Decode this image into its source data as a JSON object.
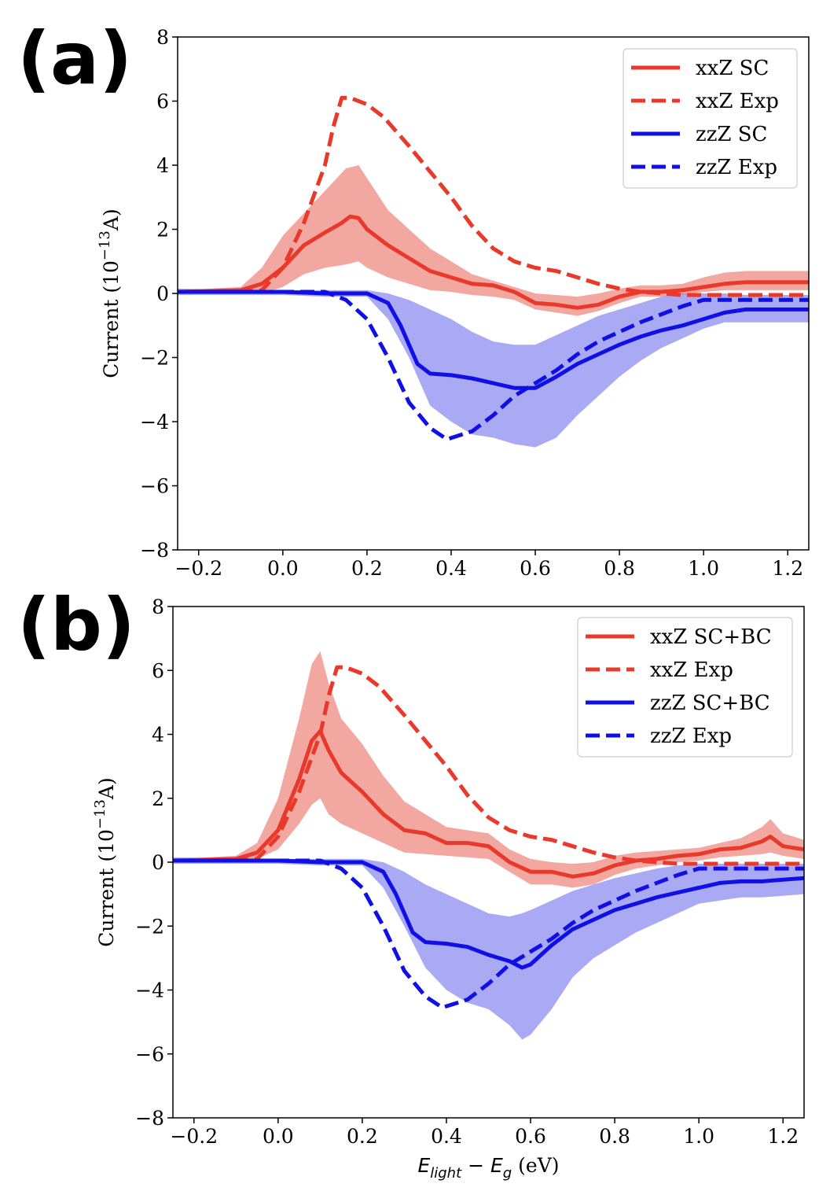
{
  "colors": {
    "red": "#e8392b",
    "blue": "#1010e6",
    "red_band": "#ee8a82",
    "blue_band": "#8e8ef0"
  },
  "chart_data": [
    {
      "type": "line",
      "panel_label": "(a)",
      "xlabel": "",
      "ylabel_parts": {
        "pre": "Current (10",
        "sup": "−13",
        "post": "A)"
      },
      "xlim": [
        -0.25,
        1.25
      ],
      "ylim": [
        -8,
        8
      ],
      "xticks": [
        "−0.2",
        "0.0",
        "0.2",
        "0.4",
        "0.6",
        "0.8",
        "1.0",
        "1.2"
      ],
      "xtick_values": [
        -0.2,
        0,
        0.2,
        0.4,
        0.6,
        0.8,
        1.0,
        1.2
      ],
      "yticks": [
        "−8",
        "−6",
        "−4",
        "−2",
        "0",
        "2",
        "4",
        "6",
        "8"
      ],
      "ytick_values": [
        -8,
        -6,
        -4,
        -2,
        0,
        2,
        4,
        6,
        8
      ],
      "grid": false,
      "legend_position": "top-right",
      "legend": [
        "xxZ SC",
        "xxZ Exp",
        "zzZ SC",
        "zzZ Exp"
      ],
      "series": [
        {
          "name": "xxZ SC",
          "color": "red",
          "style": "solid",
          "x": [
            -0.25,
            -0.1,
            -0.05,
            0.0,
            0.05,
            0.1,
            0.14,
            0.16,
            0.18,
            0.2,
            0.25,
            0.3,
            0.35,
            0.4,
            0.45,
            0.5,
            0.55,
            0.6,
            0.65,
            0.7,
            0.75,
            0.8,
            0.85,
            0.9,
            0.95,
            1.0,
            1.05,
            1.1,
            1.15,
            1.2,
            1.25
          ],
          "y": [
            0.05,
            0.1,
            0.3,
            0.8,
            1.5,
            1.9,
            2.2,
            2.4,
            2.35,
            2.0,
            1.5,
            1.1,
            0.7,
            0.5,
            0.3,
            0.25,
            0.05,
            -0.3,
            -0.35,
            -0.45,
            -0.35,
            -0.1,
            0.05,
            0.05,
            0.1,
            0.2,
            0.3,
            0.35,
            0.35,
            0.35,
            0.35
          ]
        },
        {
          "name": "xxZ Exp",
          "color": "red",
          "style": "dashed",
          "x": [
            -0.25,
            -0.1,
            -0.05,
            0.0,
            0.05,
            0.1,
            0.12,
            0.14,
            0.16,
            0.2,
            0.24,
            0.3,
            0.35,
            0.4,
            0.45,
            0.5,
            0.55,
            0.6,
            0.65,
            0.7,
            0.75,
            0.8,
            0.85,
            0.9,
            0.95,
            1.0,
            1.05,
            1.1,
            1.15,
            1.2,
            1.25
          ],
          "y": [
            0.05,
            0.05,
            0.1,
            0.8,
            2.2,
            4.0,
            5.2,
            6.1,
            6.1,
            5.9,
            5.5,
            4.6,
            3.8,
            3.0,
            2.1,
            1.4,
            1.0,
            0.8,
            0.7,
            0.5,
            0.3,
            0.15,
            0.05,
            0.0,
            -0.05,
            -0.05,
            -0.05,
            -0.05,
            -0.05,
            -0.05,
            -0.05
          ]
        },
        {
          "name": "zzZ SC",
          "color": "blue",
          "style": "solid",
          "x": [
            -0.25,
            0.0,
            0.1,
            0.2,
            0.25,
            0.28,
            0.3,
            0.32,
            0.35,
            0.4,
            0.45,
            0.5,
            0.55,
            0.6,
            0.65,
            0.7,
            0.75,
            0.8,
            0.85,
            0.9,
            0.95,
            1.0,
            1.05,
            1.1,
            1.15,
            1.2,
            1.25
          ],
          "y": [
            0.05,
            0.05,
            0.0,
            0.0,
            -0.3,
            -1.0,
            -1.6,
            -2.2,
            -2.5,
            -2.55,
            -2.65,
            -2.8,
            -2.95,
            -2.95,
            -2.6,
            -2.2,
            -1.9,
            -1.6,
            -1.35,
            -1.15,
            -1.0,
            -0.8,
            -0.6,
            -0.5,
            -0.5,
            -0.5,
            -0.5
          ]
        },
        {
          "name": "zzZ Exp",
          "color": "blue",
          "style": "dashed",
          "x": [
            -0.25,
            0.0,
            0.1,
            0.15,
            0.2,
            0.25,
            0.3,
            0.35,
            0.39,
            0.45,
            0.5,
            0.55,
            0.6,
            0.65,
            0.7,
            0.75,
            0.8,
            0.85,
            0.9,
            0.95,
            1.0,
            1.05,
            1.1,
            1.15,
            1.2,
            1.25
          ],
          "y": [
            0.05,
            0.05,
            0.05,
            -0.2,
            -0.8,
            -2.0,
            -3.4,
            -4.2,
            -4.55,
            -4.3,
            -3.8,
            -3.2,
            -2.8,
            -2.4,
            -1.9,
            -1.5,
            -1.2,
            -0.9,
            -0.65,
            -0.4,
            -0.2,
            -0.2,
            -0.2,
            -0.2,
            -0.2,
            -0.2
          ]
        }
      ],
      "bands": [
        {
          "series": "xxZ SC",
          "color": "red_band",
          "x": [
            -0.25,
            -0.1,
            -0.05,
            0.0,
            0.05,
            0.1,
            0.15,
            0.18,
            0.2,
            0.25,
            0.3,
            0.35,
            0.4,
            0.45,
            0.5,
            0.55,
            0.6,
            0.65,
            0.7,
            0.75,
            0.8,
            0.85,
            0.9,
            0.95,
            1.0,
            1.05,
            1.1,
            1.15,
            1.2,
            1.25
          ],
          "upper": [
            0.1,
            0.2,
            0.8,
            1.8,
            2.5,
            3.2,
            3.9,
            4.0,
            3.6,
            2.6,
            2.0,
            1.4,
            1.0,
            0.6,
            0.4,
            0.2,
            0.0,
            -0.05,
            -0.1,
            0.0,
            0.15,
            0.25,
            0.25,
            0.3,
            0.5,
            0.65,
            0.7,
            0.7,
            0.7,
            0.7
          ],
          "lower": [
            0.0,
            0.0,
            0.0,
            0.2,
            0.6,
            0.8,
            0.9,
            1.0,
            0.8,
            0.5,
            0.3,
            0.1,
            0.05,
            -0.05,
            -0.1,
            -0.2,
            -0.5,
            -0.6,
            -0.7,
            -0.55,
            -0.3,
            -0.1,
            -0.1,
            -0.05,
            0.05,
            0.1,
            0.1,
            0.1,
            0.1,
            0.1
          ]
        },
        {
          "series": "zzZ SC",
          "color": "blue_band",
          "x": [
            -0.25,
            0.0,
            0.1,
            0.2,
            0.25,
            0.3,
            0.35,
            0.4,
            0.45,
            0.5,
            0.55,
            0.6,
            0.65,
            0.7,
            0.75,
            0.8,
            0.85,
            0.9,
            0.95,
            1.0,
            1.05,
            1.1,
            1.15,
            1.2,
            1.25
          ],
          "upper": [
            0.15,
            0.1,
            0.1,
            0.1,
            0.0,
            -0.2,
            -0.5,
            -0.8,
            -1.2,
            -1.5,
            -1.6,
            -1.6,
            -1.3,
            -1.0,
            -0.7,
            -0.5,
            -0.3,
            -0.1,
            0.0,
            0.0,
            0.0,
            -0.05,
            -0.05,
            -0.05,
            -0.05
          ],
          "lower": [
            -0.05,
            -0.05,
            -0.1,
            -0.1,
            -0.8,
            -2.0,
            -3.5,
            -4.0,
            -4.4,
            -4.5,
            -4.7,
            -4.8,
            -4.5,
            -3.8,
            -3.2,
            -2.6,
            -2.1,
            -1.7,
            -1.4,
            -1.1,
            -0.9,
            -0.9,
            -0.9,
            -0.9,
            -0.9
          ]
        }
      ]
    },
    {
      "type": "line",
      "panel_label": "(b)",
      "xlabel_parts": {
        "main": "E",
        "sub1": "light",
        "minus": " − E",
        "sub2": "g",
        "post": " (eV)"
      },
      "ylabel_parts": {
        "pre": "Current (10",
        "sup": "−13",
        "post": "A)"
      },
      "xlim": [
        -0.25,
        1.25
      ],
      "ylim": [
        -8,
        8
      ],
      "xticks": [
        "−0.2",
        "0.0",
        "0.2",
        "0.4",
        "0.6",
        "0.8",
        "1.0",
        "1.2"
      ],
      "xtick_values": [
        -0.2,
        0,
        0.2,
        0.4,
        0.6,
        0.8,
        1.0,
        1.2
      ],
      "yticks": [
        "−8",
        "−6",
        "−4",
        "−2",
        "0",
        "2",
        "4",
        "6",
        "8"
      ],
      "ytick_values": [
        -8,
        -6,
        -4,
        -2,
        0,
        2,
        4,
        6,
        8
      ],
      "grid": false,
      "legend_position": "top-right",
      "legend": [
        "xxZ SC+BC",
        "xxZ Exp",
        "zzZ SC+BC",
        "zzZ Exp"
      ],
      "series": [
        {
          "name": "xxZ SC+BC",
          "color": "red",
          "style": "solid",
          "x": [
            -0.25,
            -0.1,
            -0.05,
            0.0,
            0.05,
            0.08,
            0.1,
            0.12,
            0.15,
            0.2,
            0.25,
            0.3,
            0.35,
            0.4,
            0.45,
            0.5,
            0.55,
            0.6,
            0.65,
            0.7,
            0.75,
            0.8,
            0.85,
            0.9,
            0.95,
            1.0,
            1.05,
            1.1,
            1.15,
            1.17,
            1.2,
            1.25
          ],
          "y": [
            0.05,
            0.1,
            0.3,
            1.0,
            2.6,
            3.8,
            4.1,
            3.5,
            2.8,
            2.2,
            1.5,
            1.0,
            0.9,
            0.6,
            0.6,
            0.5,
            0.0,
            -0.3,
            -0.3,
            -0.45,
            -0.35,
            -0.1,
            0.05,
            0.1,
            0.2,
            0.25,
            0.4,
            0.45,
            0.65,
            0.8,
            0.5,
            0.4
          ]
        },
        {
          "name": "xxZ Exp",
          "color": "red",
          "style": "dashed",
          "x": [
            -0.25,
            -0.1,
            -0.05,
            0.0,
            0.05,
            0.1,
            0.12,
            0.14,
            0.16,
            0.2,
            0.24,
            0.3,
            0.35,
            0.4,
            0.45,
            0.5,
            0.55,
            0.6,
            0.65,
            0.7,
            0.75,
            0.8,
            0.85,
            0.9,
            0.95,
            1.0,
            1.05,
            1.1,
            1.15,
            1.2,
            1.25
          ],
          "y": [
            0.05,
            0.05,
            0.1,
            0.8,
            2.2,
            4.0,
            5.2,
            6.1,
            6.1,
            5.9,
            5.5,
            4.6,
            3.8,
            3.0,
            2.1,
            1.4,
            1.0,
            0.8,
            0.7,
            0.5,
            0.3,
            0.15,
            0.05,
            0.0,
            -0.05,
            -0.05,
            -0.05,
            -0.05,
            -0.05,
            -0.05,
            -0.05
          ]
        },
        {
          "name": "zzZ SC+BC",
          "color": "blue",
          "style": "solid",
          "x": [
            -0.25,
            0.0,
            0.1,
            0.2,
            0.25,
            0.28,
            0.3,
            0.32,
            0.35,
            0.4,
            0.45,
            0.5,
            0.55,
            0.58,
            0.6,
            0.65,
            0.7,
            0.75,
            0.8,
            0.85,
            0.9,
            0.95,
            1.0,
            1.05,
            1.1,
            1.15,
            1.2,
            1.25
          ],
          "y": [
            0.05,
            0.05,
            0.0,
            0.0,
            -0.3,
            -1.0,
            -1.6,
            -2.2,
            -2.5,
            -2.55,
            -2.65,
            -2.9,
            -3.1,
            -3.3,
            -3.2,
            -2.6,
            -2.1,
            -1.8,
            -1.5,
            -1.3,
            -1.1,
            -0.95,
            -0.8,
            -0.65,
            -0.6,
            -0.6,
            -0.55,
            -0.5
          ]
        },
        {
          "name": "zzZ Exp",
          "color": "blue",
          "style": "dashed",
          "x": [
            -0.25,
            0.0,
            0.1,
            0.15,
            0.2,
            0.25,
            0.3,
            0.35,
            0.39,
            0.45,
            0.5,
            0.55,
            0.6,
            0.65,
            0.7,
            0.75,
            0.8,
            0.85,
            0.9,
            0.95,
            1.0,
            1.05,
            1.1,
            1.15,
            1.2,
            1.25
          ],
          "y": [
            0.05,
            0.05,
            0.05,
            -0.2,
            -0.8,
            -2.0,
            -3.4,
            -4.2,
            -4.55,
            -4.3,
            -3.8,
            -3.2,
            -2.8,
            -2.4,
            -1.9,
            -1.5,
            -1.2,
            -0.9,
            -0.65,
            -0.4,
            -0.2,
            -0.2,
            -0.2,
            -0.2,
            -0.2,
            -0.2
          ]
        }
      ],
      "bands": [
        {
          "series": "xxZ SC+BC",
          "color": "red_band",
          "x": [
            -0.25,
            -0.1,
            -0.05,
            0.0,
            0.05,
            0.08,
            0.1,
            0.12,
            0.15,
            0.2,
            0.25,
            0.3,
            0.35,
            0.4,
            0.45,
            0.5,
            0.55,
            0.6,
            0.65,
            0.7,
            0.75,
            0.8,
            0.85,
            0.9,
            0.95,
            1.0,
            1.05,
            1.1,
            1.15,
            1.17,
            1.2,
            1.25
          ],
          "upper": [
            0.1,
            0.2,
            0.6,
            2.0,
            4.5,
            6.2,
            6.6,
            5.6,
            4.5,
            3.7,
            2.7,
            1.9,
            1.5,
            1.1,
            1.0,
            0.9,
            0.4,
            0.1,
            0.0,
            -0.05,
            0.0,
            0.2,
            0.3,
            0.35,
            0.4,
            0.45,
            0.6,
            0.75,
            1.1,
            1.35,
            0.9,
            0.7
          ],
          "lower": [
            0.0,
            0.0,
            0.1,
            0.4,
            1.2,
            1.8,
            2.0,
            1.5,
            1.2,
            0.9,
            0.6,
            0.3,
            0.25,
            0.2,
            0.15,
            0.1,
            -0.3,
            -0.7,
            -0.7,
            -0.8,
            -0.7,
            -0.4,
            -0.2,
            -0.1,
            0.0,
            0.05,
            0.15,
            0.2,
            0.25,
            0.3,
            0.2,
            0.1
          ]
        },
        {
          "series": "zzZ SC+BC",
          "color": "blue_band",
          "x": [
            -0.25,
            0.0,
            0.1,
            0.2,
            0.25,
            0.3,
            0.35,
            0.4,
            0.45,
            0.5,
            0.55,
            0.58,
            0.6,
            0.65,
            0.7,
            0.75,
            0.8,
            0.85,
            0.9,
            0.95,
            1.0,
            1.05,
            1.1,
            1.15,
            1.2,
            1.25
          ],
          "upper": [
            0.15,
            0.1,
            0.1,
            0.1,
            0.0,
            -0.3,
            -0.7,
            -1.0,
            -1.3,
            -1.6,
            -1.7,
            -1.6,
            -1.5,
            -1.2,
            -0.9,
            -0.7,
            -0.5,
            -0.35,
            -0.2,
            -0.1,
            -0.05,
            -0.05,
            -0.05,
            -0.05,
            -0.05,
            -0.05
          ],
          "lower": [
            -0.05,
            -0.05,
            -0.1,
            -0.1,
            -0.8,
            -2.0,
            -3.3,
            -4.0,
            -4.4,
            -4.6,
            -5.1,
            -5.55,
            -5.4,
            -4.6,
            -3.6,
            -3.0,
            -2.6,
            -2.2,
            -1.9,
            -1.6,
            -1.3,
            -1.2,
            -1.1,
            -1.1,
            -1.05,
            -1.0
          ]
        }
      ]
    }
  ]
}
